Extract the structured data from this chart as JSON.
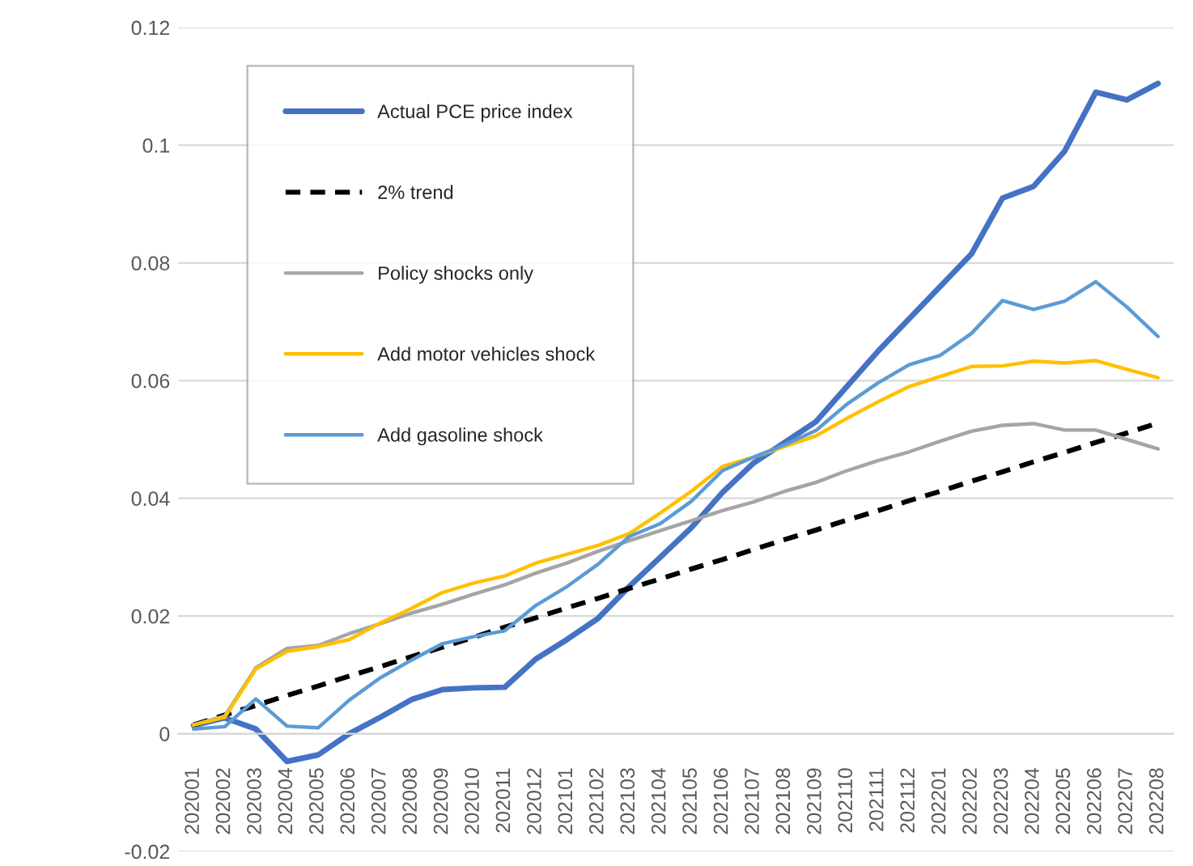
{
  "chart_data": {
    "type": "line",
    "categories": [
      "202001",
      "202002",
      "202003",
      "202004",
      "202005",
      "202006",
      "202007",
      "202008",
      "202009",
      "202010",
      "202011",
      "202012",
      "202101",
      "202102",
      "202103",
      "202104",
      "202105",
      "202106",
      "202107",
      "202108",
      "202109",
      "202110",
      "202111",
      "202112",
      "202201",
      "202202",
      "202203",
      "202204",
      "202205",
      "202206",
      "202207",
      "202208"
    ],
    "series": [
      {
        "name": "Actual PCE price index",
        "color": "#4472c4",
        "line_style": "solid",
        "values": [
          0.0014,
          0.0027,
          0.0008,
          -0.0047,
          -0.0036,
          0.0,
          0.0028,
          0.0058,
          0.0075,
          0.0078,
          0.0079,
          0.0127,
          0.016,
          0.0196,
          0.025,
          0.03,
          0.035,
          0.041,
          0.046,
          0.0495,
          0.053,
          0.059,
          0.065,
          0.0705,
          0.076,
          0.0815,
          0.091,
          0.093,
          0.099,
          0.109,
          0.1077,
          0.1105
        ]
      },
      {
        "name": "2% trend",
        "color": "#000000",
        "line_style": "dashed",
        "values": [
          0.0015,
          0.0032,
          0.0048,
          0.0065,
          0.0081,
          0.0098,
          0.0114,
          0.0131,
          0.0147,
          0.0164,
          0.0181,
          0.0197,
          0.0214,
          0.023,
          0.0247,
          0.0263,
          0.028,
          0.0296,
          0.0313,
          0.033,
          0.0346,
          0.0363,
          0.0379,
          0.0396,
          0.0412,
          0.0429,
          0.0445,
          0.0462,
          0.0478,
          0.0495,
          0.0511,
          0.0528
        ]
      },
      {
        "name": "Policy shocks only",
        "color": "#a5a5a5",
        "line_style": "solid",
        "values": [
          0.0015,
          0.003,
          0.0112,
          0.0145,
          0.015,
          0.017,
          0.0187,
          0.0205,
          0.022,
          0.0237,
          0.0253,
          0.0273,
          0.029,
          0.031,
          0.0328,
          0.0345,
          0.0362,
          0.0379,
          0.0394,
          0.0412,
          0.0427,
          0.0447,
          0.0464,
          0.0479,
          0.0497,
          0.0514,
          0.0524,
          0.0527,
          0.0516,
          0.0516,
          0.05,
          0.0484
        ]
      },
      {
        "name": "Add motor vehicles shock",
        "color": "#ffc000",
        "line_style": "solid",
        "values": [
          0.0015,
          0.0028,
          0.011,
          0.014,
          0.0148,
          0.016,
          0.0188,
          0.0213,
          0.024,
          0.0256,
          0.0268,
          0.029,
          0.0305,
          0.032,
          0.034,
          0.0375,
          0.0412,
          0.0454,
          0.047,
          0.0488,
          0.0506,
          0.0536,
          0.0564,
          0.059,
          0.0607,
          0.0624,
          0.0625,
          0.0633,
          0.063,
          0.0634,
          0.0619,
          0.0605
        ]
      },
      {
        "name": "Add gasoline shock",
        "color": "#5b9bd5",
        "line_style": "solid",
        "values": [
          0.0008,
          0.0012,
          0.0059,
          0.0013,
          0.001,
          0.0057,
          0.0095,
          0.0125,
          0.0153,
          0.0165,
          0.0175,
          0.0218,
          0.025,
          0.0288,
          0.0335,
          0.0357,
          0.0395,
          0.0447,
          0.047,
          0.0491,
          0.0515,
          0.056,
          0.0596,
          0.0627,
          0.0643,
          0.068,
          0.0736,
          0.0721,
          0.0735,
          0.0768,
          0.0725,
          0.0675
        ]
      }
    ],
    "ylim": [
      -0.02,
      0.12
    ],
    "yticks": [
      -0.02,
      0,
      0.02,
      0.04,
      0.06,
      0.08,
      0.1,
      0.12
    ],
    "grid": "y",
    "legend": "top left",
    "marker": "none"
  }
}
